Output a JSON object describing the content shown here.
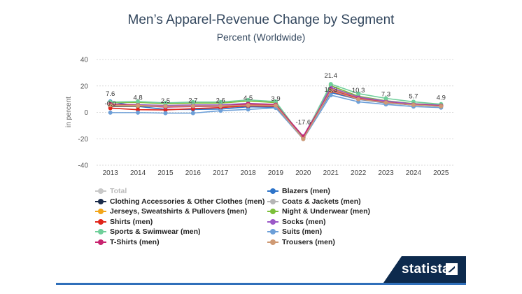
{
  "chart_data": {
    "type": "line",
    "title": "Men’s Apparel-Revenue Change by Segment",
    "subtitle": "Percent (Worldwide)",
    "ylabel": "in percent",
    "xlabel": "",
    "ylim": [
      -40,
      40
    ],
    "yticks": [
      -40,
      -20,
      0,
      20,
      40
    ],
    "grid": true,
    "legend_position": "bottom",
    "x": [
      "2013",
      "2014",
      "2015",
      "2016",
      "2017",
      "2018",
      "2019",
      "2020",
      "2021",
      "2022",
      "2023",
      "2024",
      "2025"
    ],
    "series": [
      {
        "name": "Total",
        "color": "#c8c8c8",
        "hidden": true,
        "values": [
          7.6,
          4.8,
          2.5,
          2.7,
          2.6,
          4.5,
          3.9,
          -17.6,
          21.4,
          10.3,
          7.3,
          5.7,
          4.9
        ]
      },
      {
        "name": "Blazers (men)",
        "color": "#2e74c9",
        "values": [
          8.2,
          4.5,
          2.2,
          2.2,
          2.5,
          4.2,
          3.8,
          -18.6,
          15.0,
          9.8,
          7.1,
          5.6,
          4.6
        ]
      },
      {
        "name": "Clothing Accessories & Other Clothes (men)",
        "color": "#1b2c4a",
        "values": [
          4.5,
          4.6,
          4.3,
          4.6,
          4.6,
          5.3,
          4.9,
          -18.8,
          16.4,
          10.4,
          7.4,
          5.6,
          4.8
        ]
      },
      {
        "name": "Coats & Jackets (men)",
        "color": "#b5b5b5",
        "values": [
          5.0,
          4.9,
          4.0,
          4.4,
          4.6,
          5.8,
          5.0,
          -19.4,
          17.6,
          11.2,
          8.0,
          6.0,
          5.0
        ]
      },
      {
        "name": "Jerseys, Sweatshirts & Pullovers (men)",
        "color": "#f2a51a",
        "values": [
          5.2,
          5.0,
          4.6,
          4.9,
          5.0,
          6.2,
          5.5,
          -19.0,
          18.4,
          11.0,
          8.2,
          6.2,
          5.2
        ]
      },
      {
        "name": "Night & Underwear (men)",
        "color": "#7cbf3a",
        "values": [
          7.4,
          7.6,
          6.5,
          7.0,
          7.0,
          8.6,
          7.4,
          -19.6,
          20.2,
          12.2,
          8.8,
          6.6,
          5.6
        ]
      },
      {
        "name": "Shirts (men)",
        "color": "#e0251b",
        "values": [
          3.2,
          2.0,
          1.8,
          2.8,
          3.6,
          4.9,
          4.6,
          -19.2,
          16.0,
          10.0,
          7.8,
          5.6,
          5.0
        ]
      },
      {
        "name": "Socks (men)",
        "color": "#9b59c7",
        "values": [
          6.0,
          5.8,
          5.2,
          5.6,
          5.7,
          6.8,
          6.0,
          -18.2,
          18.8,
          11.6,
          8.5,
          6.4,
          5.4
        ]
      },
      {
        "name": "Sports & Swimwear (men)",
        "color": "#6fcf9a",
        "values": [
          7.8,
          8.2,
          7.2,
          7.8,
          7.8,
          9.4,
          8.2,
          -19.8,
          21.4,
          14.2,
          10.6,
          8.0,
          6.2
        ]
      },
      {
        "name": "Suits (men)",
        "color": "#6c9fd8",
        "values": [
          -0.2,
          -0.2,
          -0.6,
          -0.6,
          1.2,
          2.2,
          3.4,
          -20.2,
          13.0,
          8.0,
          6.0,
          4.4,
          3.6
        ]
      },
      {
        "name": "T-Shirts (men)",
        "color": "#c8246f",
        "values": [
          6.2,
          5.4,
          4.0,
          4.4,
          4.6,
          6.4,
          5.8,
          -18.4,
          17.0,
          10.6,
          7.6,
          5.8,
          5.0
        ]
      },
      {
        "name": "Trousers (men)",
        "color": "#cf9a74",
        "values": [
          5.4,
          5.2,
          4.6,
          4.8,
          4.8,
          5.4,
          5.2,
          -20.2,
          16.4,
          10.0,
          7.4,
          5.6,
          4.6
        ]
      }
    ],
    "data_labels": [
      {
        "x": "2013",
        "text": "7.6"
      },
      {
        "x": "2013",
        "text": "-0.0"
      },
      {
        "x": "2014",
        "text": "4.8"
      },
      {
        "x": "2015",
        "text": "2.5"
      },
      {
        "x": "2016",
        "text": "2.7"
      },
      {
        "x": "2017",
        "text": "2.6"
      },
      {
        "x": "2018",
        "text": "4.5"
      },
      {
        "x": "2019",
        "text": "3.9"
      },
      {
        "x": "2020",
        "text": "-17.6"
      },
      {
        "x": "2021",
        "text": "21.4"
      },
      {
        "x": "2021",
        "text": "15.3"
      },
      {
        "x": "2022",
        "text": "10.3"
      },
      {
        "x": "2023",
        "text": "7.3"
      },
      {
        "x": "2024",
        "text": "5.7"
      },
      {
        "x": "2025",
        "text": "4.9"
      }
    ]
  },
  "brand": {
    "name": "statista"
  }
}
